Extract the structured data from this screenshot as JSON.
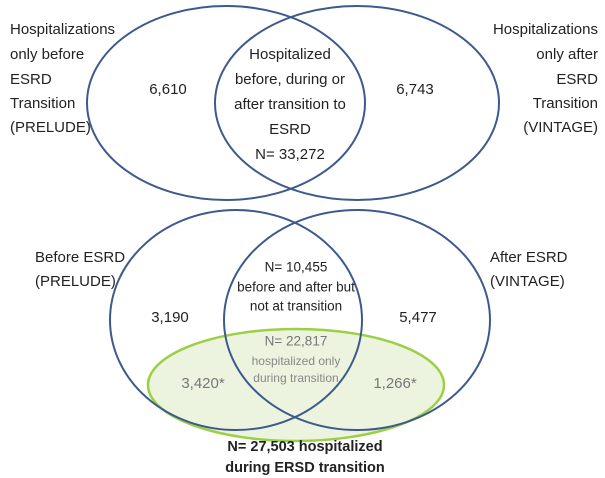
{
  "top": {
    "left_label": [
      "Hospitalizations",
      "only before",
      "ESRD",
      "Transition",
      "(PRELUDE)"
    ],
    "right_label": [
      "Hospitalizations",
      "only after",
      "ESRD",
      "Transition",
      "(VINTAGE)"
    ],
    "left_count": "6,610",
    "right_count": "6,743",
    "center": [
      "Hospitalized",
      "before, during or",
      "after transition to",
      "ESRD",
      "N= 33,272"
    ]
  },
  "bottom": {
    "left_label": [
      "Before ESRD",
      "(PRELUDE)"
    ],
    "right_label": [
      "After ESRD",
      "(VINTAGE)"
    ],
    "left_count": "3,190",
    "right_count": "5,477",
    "center": [
      "N= 10,455",
      "before and after but",
      "not at transition"
    ],
    "transition": {
      "count": "N= 22,817",
      "text": [
        "hospitalized only",
        "during transition"
      ],
      "left_count": "3,420*",
      "right_count": "1,266*"
    },
    "footer": [
      "N= 27,503 hospitalized",
      "during ERSD transition"
    ]
  }
}
